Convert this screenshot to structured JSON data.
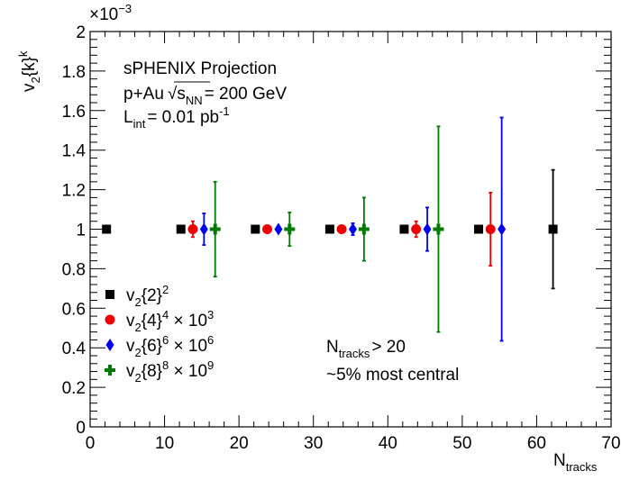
{
  "chart_data": {
    "type": "scatter",
    "xlabel": "N",
    "xlabel_sub": "tracks",
    "ylabel": "v",
    "ylabel_sub": "2",
    "ylabel_mid": "{k}",
    "ylabel_sup": "k",
    "y_multiplier": "×10",
    "y_multiplier_exp": "−3",
    "xlim": [
      0,
      70
    ],
    "ylim": [
      0,
      2
    ],
    "x_ticks": [
      "0",
      "10",
      "20",
      "30",
      "40",
      "50",
      "60",
      "70"
    ],
    "y_ticks": [
      "0",
      "0.2",
      "0.4",
      "0.6",
      "0.8",
      "1",
      "1.2",
      "1.4",
      "1.6",
      "1.8",
      "2"
    ],
    "grid": false,
    "annotations": {
      "line1": "sPHENIX Projection",
      "line2_a": "p+Au",
      "line2_sqrt": "√",
      "line2_s": "s",
      "line2_sub": "NN",
      "line2_b": "= 200 GeV",
      "line3_a": "L",
      "line3_sub": "int",
      "line3_b": "= 0.01 pb",
      "line3_sup": "-1",
      "cond1_a": "N",
      "cond1_sub": "tracks",
      "cond1_b": "> 20",
      "cond2": "~5% most central"
    },
    "legend_position": "bottom-left",
    "series": [
      {
        "name": "v2{2}^2",
        "legend": {
          "a": "v",
          "sub": "2",
          "b": "{2}",
          "sup": "2",
          "c": ""
        },
        "color": "#000000",
        "marker": "square",
        "x": [
          2.2,
          12.2,
          22.2,
          32.2,
          42.2,
          52.2,
          62.2
        ],
        "y": [
          1,
          1,
          1,
          1,
          1,
          1,
          1
        ],
        "err": [
          0.005,
          0.005,
          0.005,
          0.005,
          0.005,
          0.005,
          0.3
        ]
      },
      {
        "name": "v2{4}^4 × 10^3",
        "legend": {
          "a": "v",
          "sub": "2",
          "b": "{4}",
          "sup": "4",
          "c": " × 10",
          "csup": "3"
        },
        "color": "#ee0000",
        "marker": "circle",
        "x": [
          13.8,
          23.8,
          33.8,
          43.8,
          53.8
        ],
        "y": [
          1,
          1,
          1,
          1,
          1
        ],
        "err": [
          0.04,
          0.01,
          0.01,
          0.04,
          0.185
        ]
      },
      {
        "name": "v2{6}^6 × 10^6",
        "legend": {
          "a": "v",
          "sub": "2",
          "b": "{6}",
          "sup": "6",
          "c": " × 10",
          "csup": "6"
        },
        "color": "#0000ee",
        "marker": "diamond",
        "x": [
          15.3,
          25.3,
          35.3,
          45.3,
          55.3
        ],
        "y": [
          1,
          1,
          1,
          1,
          1
        ],
        "err": [
          0.08,
          0.01,
          0.03,
          0.11,
          0.565
        ]
      },
      {
        "name": "v2{8}^8 × 10^9",
        "legend": {
          "a": "v",
          "sub": "2",
          "b": "{8}",
          "sup": "8",
          "c": " × 10",
          "csup": "9"
        },
        "color": "#007a00",
        "marker": "cross",
        "x": [
          16.8,
          26.8,
          36.8,
          46.8
        ],
        "y": [
          1,
          1,
          1,
          1
        ],
        "err": [
          0.24,
          0.085,
          0.16,
          0.52
        ]
      }
    ]
  }
}
